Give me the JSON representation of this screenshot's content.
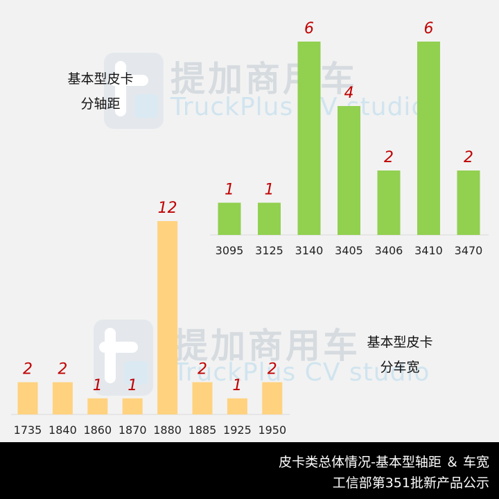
{
  "watermark": {
    "cn": "提加商用车",
    "en": "TruckPlus CV studio"
  },
  "chart_data": [
    {
      "type": "bar",
      "title_lines": [
        "基本型皮卡",
        "分轴距"
      ],
      "categories": [
        "3095",
        "3125",
        "3140",
        "3405",
        "3406",
        "3410",
        "3470"
      ],
      "values": [
        1,
        1,
        6,
        4,
        2,
        6,
        2
      ],
      "color": "#92d050",
      "label_color": "#c00000",
      "ylim": [
        0,
        6
      ]
    },
    {
      "type": "bar",
      "title_lines": [
        "基本型皮卡",
        "分车宽"
      ],
      "categories": [
        "1735",
        "1840",
        "1860",
        "1870",
        "1880",
        "1885",
        "1925",
        "1950"
      ],
      "values": [
        2,
        2,
        1,
        1,
        12,
        2,
        1,
        2
      ],
      "color": "#ffd27f",
      "label_color": "#c00000",
      "ylim": [
        0,
        12
      ]
    }
  ],
  "footer": {
    "line1": "皮卡类总体情况-基本型轴距 ＆ 车宽",
    "line2": "工信部第351批新产品公示"
  }
}
